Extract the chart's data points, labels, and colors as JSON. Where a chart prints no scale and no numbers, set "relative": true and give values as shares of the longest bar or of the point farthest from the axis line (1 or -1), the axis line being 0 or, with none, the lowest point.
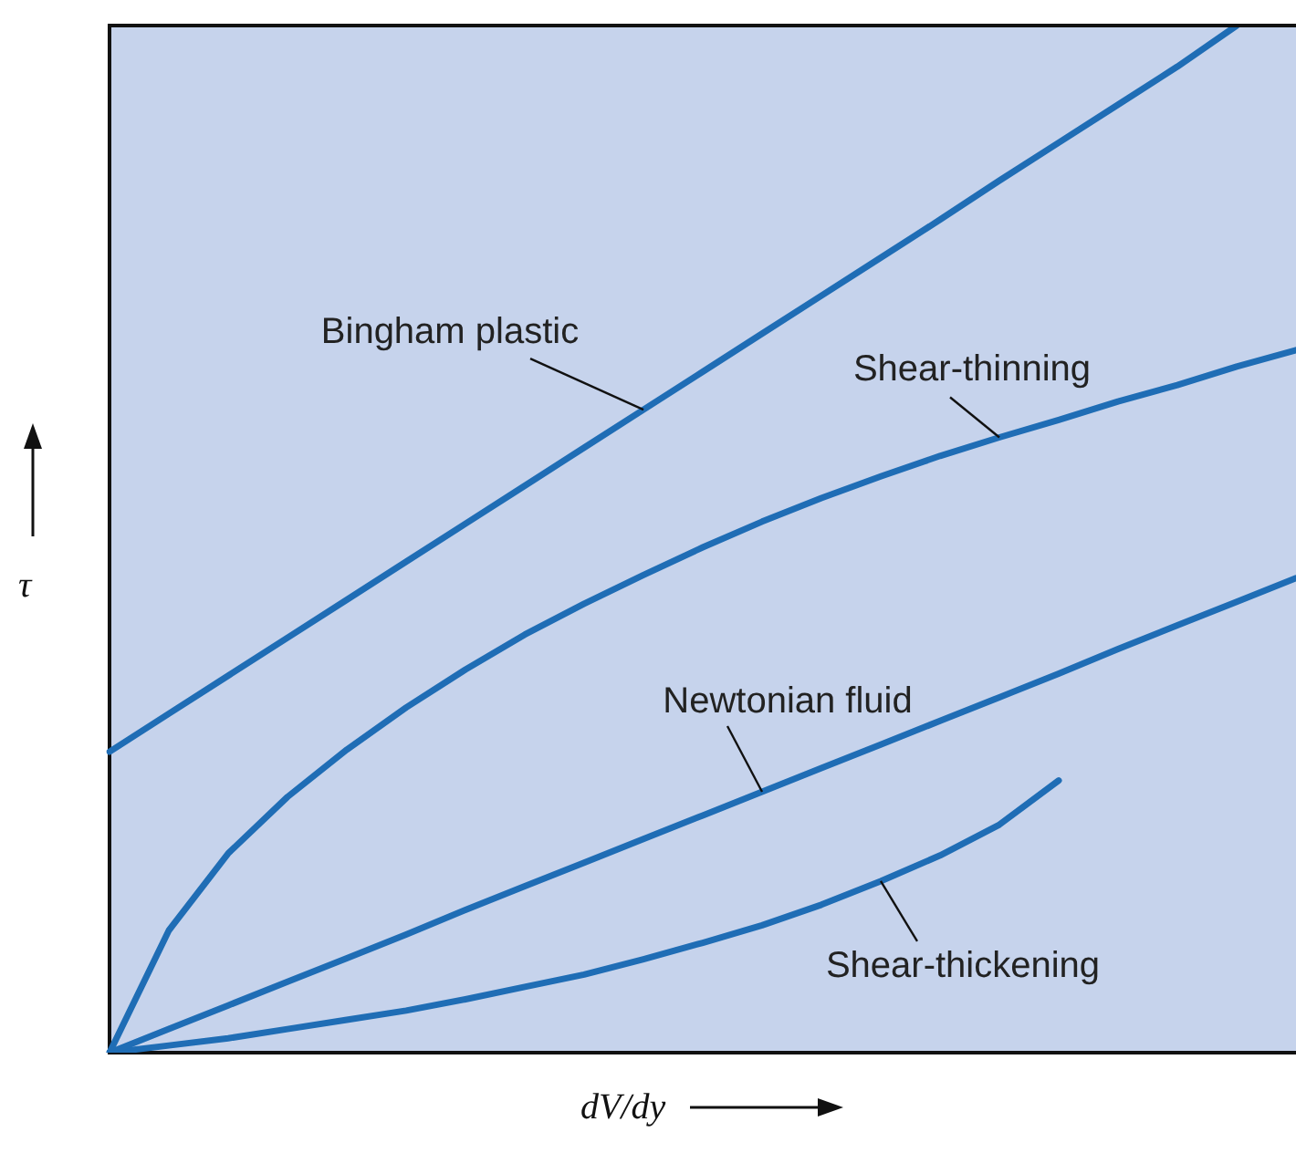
{
  "chart_data": {
    "type": "line",
    "relative": true,
    "xlabel": "dV/dy",
    "ylabel": "τ",
    "tick_labels": false,
    "marker": "none",
    "line_style": "solid",
    "categories": [
      null,
      null,
      null,
      null,
      null,
      null,
      null,
      null,
      null,
      null,
      null,
      null,
      null,
      null,
      null,
      null,
      null,
      null,
      null,
      null,
      null
    ],
    "series": [
      {
        "name": "Bingham plastic",
        "color": "#1f6db5",
        "values": [
          0.293,
          0.33,
          0.367,
          0.404,
          0.441,
          0.478,
          0.515,
          0.552,
          0.589,
          0.626,
          0.663,
          0.7,
          0.737,
          0.774,
          0.811,
          0.849,
          0.886,
          0.923,
          0.96,
          1,
          null
        ]
      },
      {
        "name": "Shear-thinning",
        "color": "#1f6db5",
        "values": [
          0,
          0.119,
          0.194,
          0.249,
          0.295,
          0.336,
          0.373,
          0.407,
          0.437,
          0.465,
          0.492,
          0.517,
          0.54,
          0.561,
          0.581,
          0.599,
          0.616,
          0.634,
          0.65,
          0.668,
          0.684
        ]
      },
      {
        "name": "Newtonian fluid",
        "color": "#1f6db5",
        "values": [
          0,
          0.023,
          0.046,
          0.069,
          0.092,
          0.115,
          0.139,
          0.162,
          0.185,
          0.208,
          0.231,
          0.254,
          0.277,
          0.3,
          0.323,
          0.346,
          0.369,
          0.393,
          0.416,
          0.439,
          0.462
        ]
      },
      {
        "name": "Shear-thickening",
        "color": "#1f6db5",
        "values": [
          0,
          0.007,
          0.014,
          0.023,
          0.032,
          0.041,
          0.052,
          0.064,
          0.076,
          0.091,
          0.107,
          0.124,
          0.144,
          0.167,
          0.192,
          0.222,
          0.265,
          null,
          null,
          null,
          null
        ]
      }
    ]
  }
}
